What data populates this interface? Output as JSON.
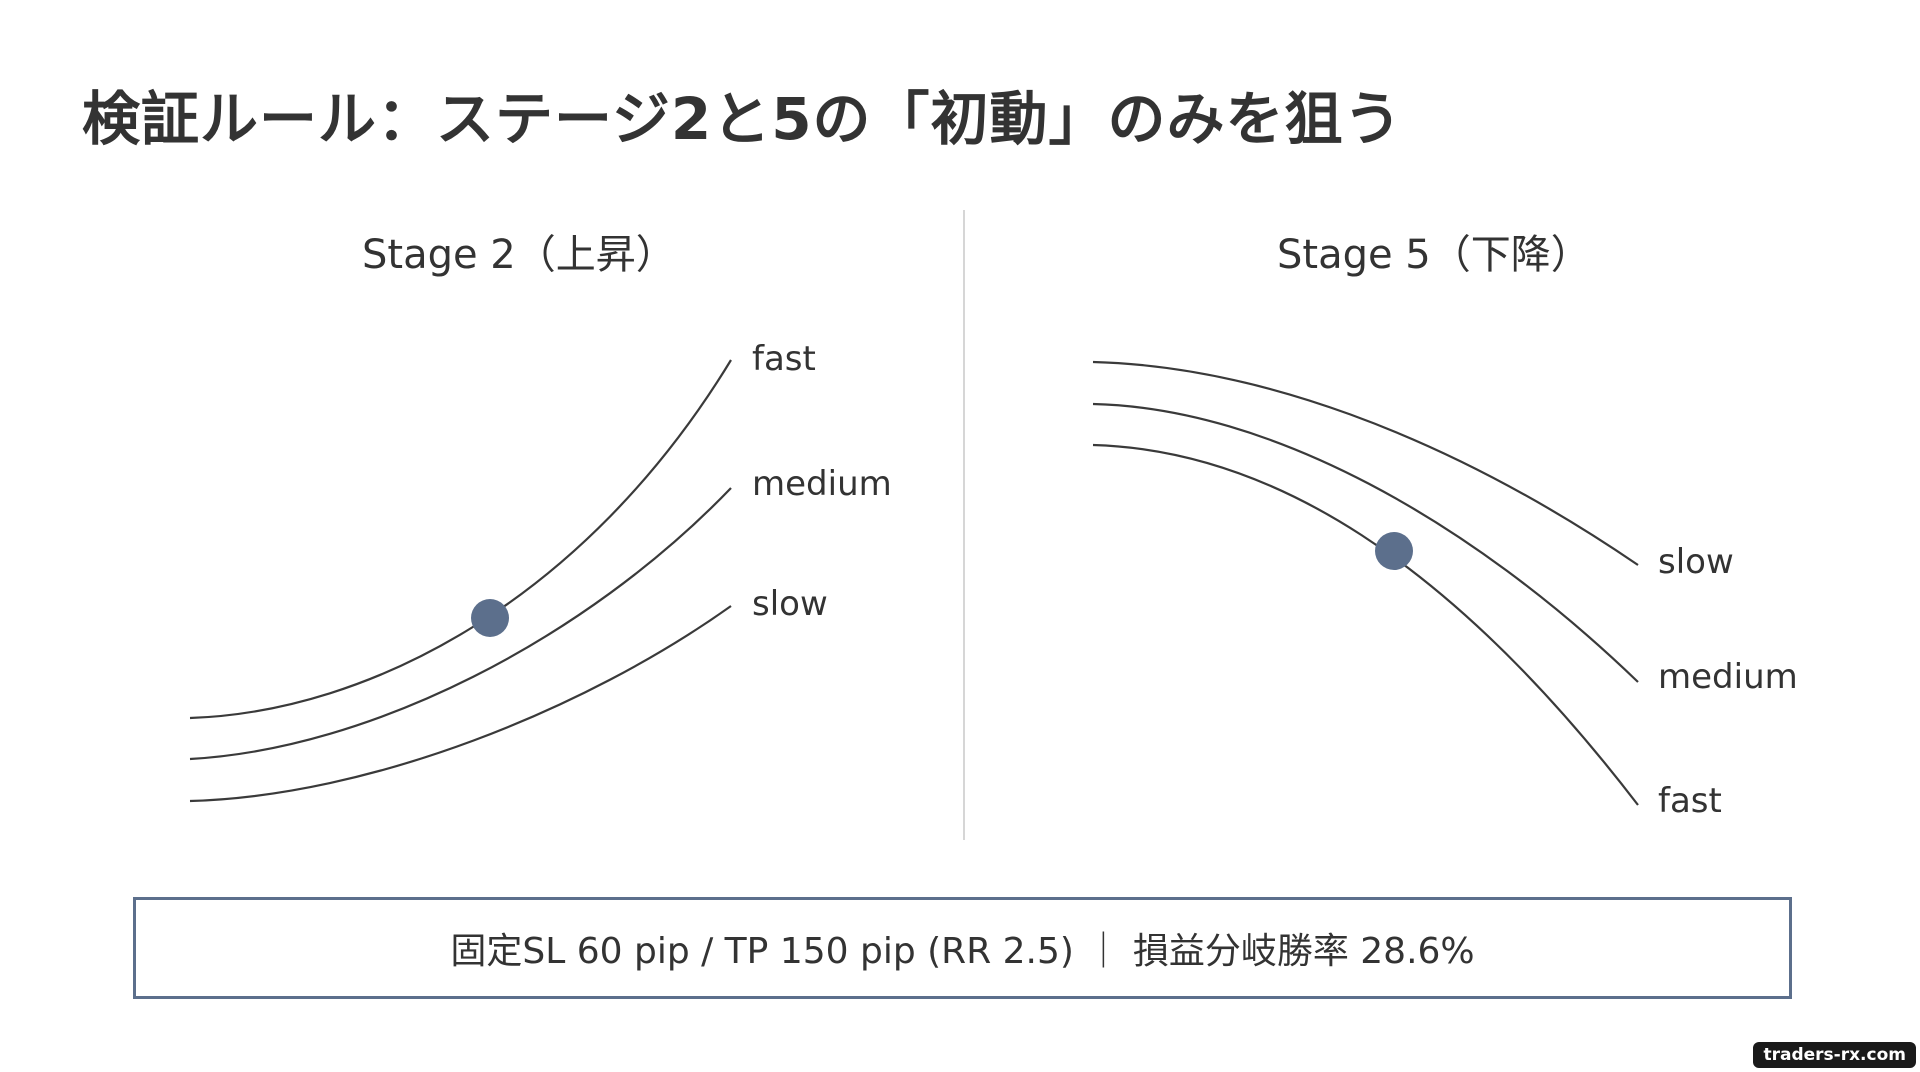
{
  "title": "検証ルール：ステージ2と5の「初動」のみを狙う",
  "left_panel": {
    "title": "Stage 2（上昇）",
    "labels": {
      "fast": "fast",
      "medium": "medium",
      "slow": "slow"
    }
  },
  "right_panel": {
    "title": "Stage 5（下降）",
    "labels": {
      "slow": "slow",
      "medium": "medium",
      "fast": "fast"
    }
  },
  "rule_box": {
    "text": "固定SL 60 pip / TP 150 pip (RR 2.5) ｜ 損益分岐勝率 28.6%"
  },
  "watermark": "traders-rx.com",
  "colors": {
    "marker": "#5c6f8c",
    "box_border": "#5c6f8c",
    "text": "#333333"
  }
}
